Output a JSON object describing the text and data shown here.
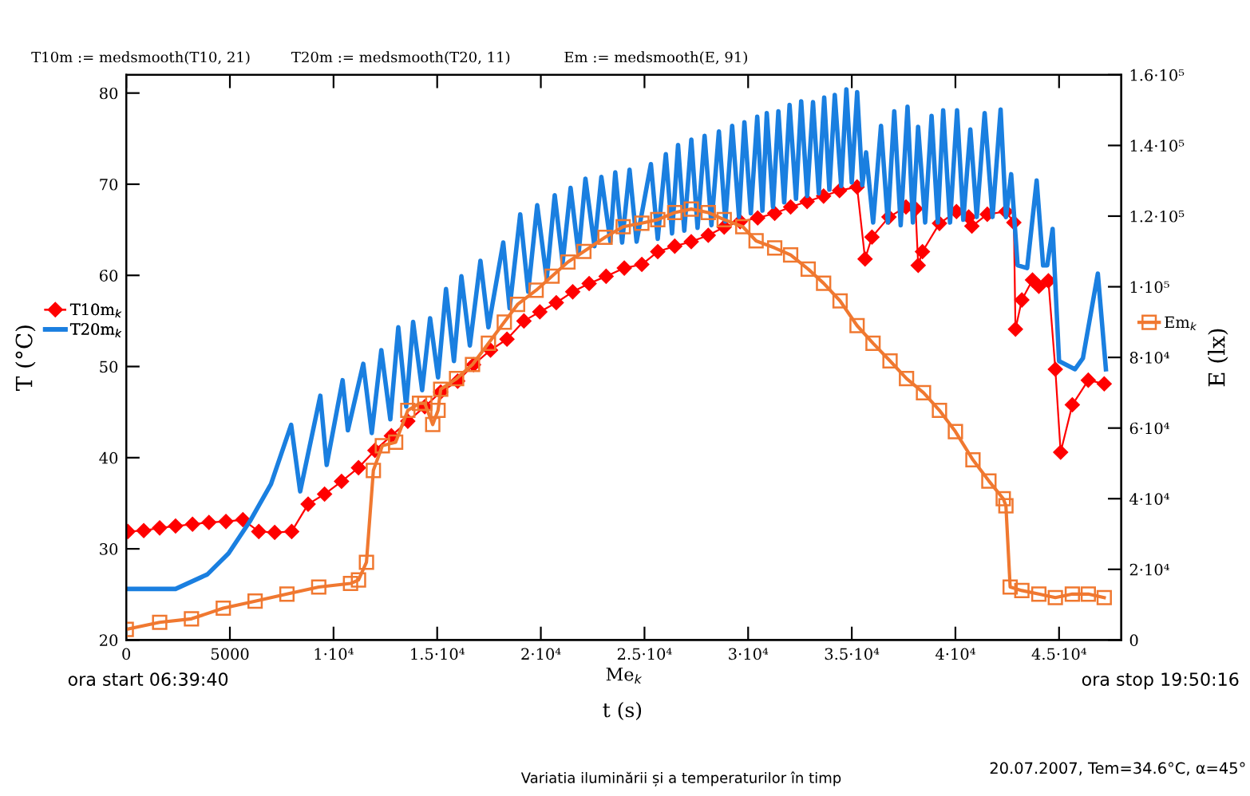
{
  "chart_data": {
    "type": "line",
    "xlabel": "Me$_{k}$",
    "ylabel": "T (°C)",
    "y2label": "E (lx)",
    "annotations": [
      "T10m := medsmooth(T10, 21)",
      "T20m := medsmooth(T20, 11)",
      "Em := medsmooth(E, 91)",
      "ora start 06:39:40",
      "ora stop 19:50:16",
      "t (s)",
      "Variatia iluminării și a temperaturilor în timp",
      "20.07.2007, Tem=34.6°C, α=45°"
    ],
    "xlim": [
      0,
      48000
    ],
    "ylim": [
      20,
      82
    ],
    "y2lim": [
      0,
      160000
    ],
    "xticks": [
      0,
      5000,
      {
        "value": 10000,
        "label": "1·10⁴"
      },
      {
        "value": 15000,
        "label": "1.5·10⁴"
      },
      {
        "value": 20000,
        "label": "2·10⁴"
      },
      {
        "value": 25000,
        "label": "2.5·10⁴"
      },
      {
        "value": 30000,
        "label": "3·10⁴"
      },
      {
        "value": 35000,
        "label": "3.5·10⁴"
      },
      {
        "value": 40000,
        "label": "4·10⁴"
      },
      {
        "value": 45000,
        "label": "4.5·10⁴"
      }
    ],
    "yticks": [
      20,
      30,
      40,
      50,
      60,
      70,
      80
    ],
    "y2ticks": [
      0,
      {
        "value": 20000,
        "label": "2·10⁴"
      },
      {
        "value": 40000,
        "label": "4·10⁴"
      },
      {
        "value": 60000,
        "label": "6·10⁴"
      },
      {
        "value": 80000,
        "label": "8·10⁴"
      },
      {
        "value": 100000,
        "label": "1·10⁵"
      },
      {
        "value": 120000,
        "label": "1.2·10⁵"
      },
      {
        "value": 140000,
        "label": "1.4·10⁵"
      },
      {
        "value": 160000,
        "label": "1.6·10⁵"
      }
    ],
    "grid": false,
    "legend": "left",
    "series": [
      {
        "name": "T10m$_{k}$",
        "color": "#ff0000",
        "marker": "diamond",
        "x": [
          77,
          844,
          1612,
          2379,
          3197,
          3990,
          4809,
          5627,
          6395,
          7162,
          7981,
          8774,
          9567,
          10385,
          11204,
          11997,
          12790,
          13583,
          14402,
          15169,
          15988,
          16755,
          17573,
          18367,
          19185,
          19952,
          20745,
          21538,
          22331,
          23150,
          24026,
          24872,
          25641,
          26461,
          27256,
          28077,
          28846,
          29615,
          30461,
          31282,
          32051,
          32846,
          33641,
          34410,
          35256,
          35641,
          35974,
          36794,
          37615,
          38077,
          38205,
          38410,
          39231,
          40051,
          40640,
          40794,
          41538,
          42436,
          42820,
          42897,
          43205,
          43718,
          44025,
          44486,
          44820,
          45076,
          45640,
          46410,
          47179
        ],
        "values": [
          31.9,
          32.0,
          32.3,
          32.5,
          32.7,
          32.9,
          33.0,
          33.2,
          31.9,
          31.8,
          31.9,
          34.9,
          36.0,
          37.4,
          38.9,
          40.8,
          42.4,
          44.0,
          45.6,
          47.2,
          48.4,
          50.2,
          51.8,
          53.0,
          55.0,
          56.0,
          57.0,
          58.2,
          59.1,
          59.9,
          60.8,
          61.2,
          62.6,
          63.2,
          63.7,
          64.4,
          65.3,
          65.9,
          66.3,
          66.8,
          67.5,
          68.1,
          68.7,
          69.3,
          69.7,
          61.8,
          64.2,
          66.4,
          67.5,
          67.3,
          61.1,
          62.6,
          65.7,
          67.0,
          66.4,
          65.4,
          66.7,
          67.0,
          65.8,
          54.1,
          57.3,
          59.5,
          58.8,
          59.4,
          49.7,
          40.6,
          45.8,
          48.5,
          48.1
        ]
      },
      {
        "name": "T20m$_{k}$",
        "color": "#1a7fe0",
        "marker": "none",
        "x": [
          0,
          2379,
          3914,
          4937,
          5960,
          6983,
          7955,
          8390,
          9362,
          9669,
          10437,
          10692,
          11434,
          11844,
          12304,
          12739,
          13123,
          13506,
          13839,
          14274,
          14657,
          15041,
          15425,
          15808,
          16167,
          16576,
          17087,
          17471,
          18187,
          18494,
          19006,
          19390,
          19825,
          20285,
          20669,
          21052,
          21436,
          21820,
          22152,
          22587,
          22920,
          23355,
          23590,
          23920,
          24280,
          24620,
          25310,
          25640,
          26030,
          26330,
          26620,
          26920,
          27260,
          27560,
          27900,
          28230,
          28590,
          28900,
          29230,
          29560,
          29820,
          30130,
          30440,
          30690,
          30900,
          31200,
          31460,
          31740,
          32000,
          32310,
          32560,
          32850,
          33130,
          33410,
          33670,
          33920,
          34180,
          34490,
          34740,
          35000,
          35260,
          35510,
          35690,
          36030,
          36410,
          36740,
          37050,
          37360,
          37690,
          37950,
          38200,
          38540,
          38850,
          39150,
          39410,
          39740,
          40080,
          40380,
          40720,
          41030,
          41410,
          41790,
          42180,
          42440,
          42690,
          43000,
          43460,
          43920,
          44230,
          44430,
          44690,
          45000,
          45770,
          46150,
          46870,
          47260
        ],
        "values": [
          25.6,
          25.6,
          27.2,
          29.5,
          33.0,
          37.1,
          43.6,
          36.3,
          46.8,
          39.2,
          48.5,
          43.0,
          50.3,
          42.7,
          51.8,
          44.2,
          54.3,
          45.6,
          54.9,
          47.4,
          55.3,
          48.8,
          58.5,
          50.6,
          59.9,
          52.3,
          61.6,
          54.3,
          63.6,
          56.4,
          66.7,
          58.2,
          67.7,
          59.6,
          68.8,
          61.4,
          69.6,
          62.3,
          70.6,
          63.2,
          70.8,
          63.7,
          71.3,
          63.6,
          71.6,
          63.7,
          72.2,
          64.0,
          73.3,
          64.6,
          74.3,
          64.9,
          74.9,
          65.2,
          75.3,
          65.5,
          75.8,
          65.9,
          76.4,
          66.4,
          76.8,
          66.8,
          77.4,
          67.1,
          77.8,
          67.5,
          78.0,
          68.0,
          78.7,
          68.4,
          79.1,
          68.7,
          79.0,
          69.0,
          79.5,
          69.4,
          79.8,
          69.8,
          80.4,
          70.2,
          80.1,
          69.9,
          73.5,
          65.8,
          76.4,
          65.8,
          78.0,
          65.5,
          78.5,
          65.8,
          76.3,
          65.8,
          77.5,
          65.8,
          78.1,
          65.8,
          78.1,
          66.1,
          76.0,
          66.4,
          77.8,
          66.4,
          78.2,
          66.4,
          71.1,
          61.1,
          60.8,
          70.4,
          61.1,
          61.1,
          65.1,
          50.6,
          49.7,
          50.9,
          60.2,
          49.7
        ]
      },
      {
        "name": "Em$_{k}$",
        "color": "#f07830",
        "marker": "square",
        "axis": "y2",
        "x": [
          0,
          1612,
          3146,
          4681,
          6216,
          7751,
          9286,
          10820,
          11204,
          11588,
          11921,
          12355,
          12995,
          13583,
          14146,
          14402,
          14785,
          15041,
          15169,
          15936,
          16704,
          17471,
          18238,
          18878,
          19773,
          20541,
          21308,
          22076,
          23099,
          23974,
          24872,
          25641,
          26461,
          27256,
          28077,
          28846,
          29743,
          30384,
          31282,
          32051,
          32897,
          33641,
          34436,
          35256,
          36026,
          36846,
          37641,
          38461,
          39231,
          40000,
          40846,
          41615,
          42308,
          42436,
          42641,
          43205,
          44025,
          44820,
          45640,
          46410,
          47179
        ],
        "values": [
          3000,
          5000,
          6000,
          9000,
          11000,
          13000,
          15000,
          16000,
          17000,
          22000,
          48000,
          55000,
          56000,
          65000,
          67000,
          67000,
          61000,
          65000,
          71000,
          74000,
          78000,
          84000,
          90000,
          95000,
          99000,
          103000,
          107000,
          110000,
          114000,
          117000,
          118000,
          119000,
          121000,
          122000,
          121000,
          119000,
          117000,
          113000,
          111000,
          109000,
          105000,
          101000,
          96000,
          89000,
          84000,
          79000,
          74000,
          70000,
          65000,
          59000,
          51000,
          45000,
          40000,
          38000,
          15000,
          14000,
          13000,
          12000,
          13000,
          13000,
          12000
        ]
      }
    ]
  }
}
